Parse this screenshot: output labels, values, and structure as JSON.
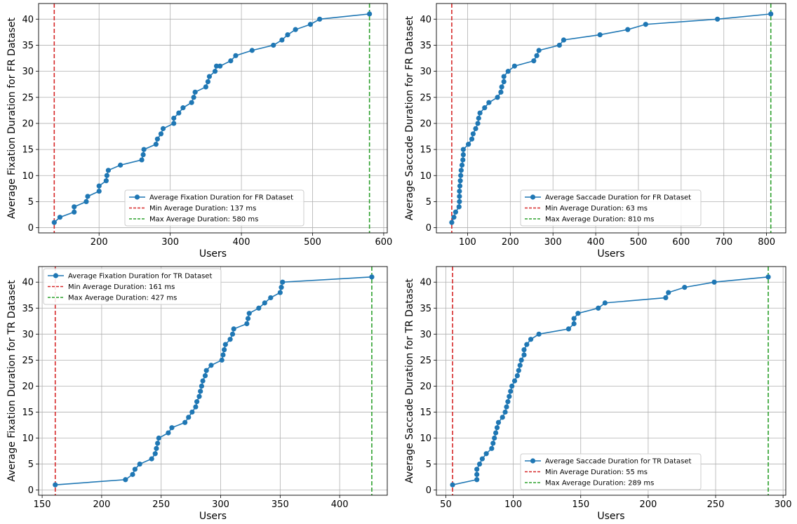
{
  "chart_data": [
    {
      "type": "line",
      "xlabel": "Users",
      "ylabel": "Average Fixation Duration for FR Dataset",
      "xlim": [
        115,
        605
      ],
      "ylim": [
        -1,
        43
      ],
      "xticks": [
        100,
        200,
        300,
        400,
        500,
        600
      ],
      "yticks": [
        0,
        5,
        10,
        15,
        20,
        25,
        30,
        35,
        40
      ],
      "grid": true,
      "legend_position": "lower center",
      "series": [
        {
          "name": "Average Fixation Duration for FR Dataset",
          "x": [
            137,
            145,
            165,
            165,
            182,
            184,
            200,
            200,
            210,
            211,
            213,
            230,
            260,
            262,
            263,
            280,
            282,
            287,
            290,
            305,
            305,
            312,
            318,
            330,
            333,
            335,
            350,
            353,
            355,
            363,
            365,
            370,
            385,
            392,
            415,
            445,
            457,
            465,
            476,
            497,
            510,
            580
          ],
          "y": [
            1,
            2,
            3,
            4,
            5,
            6,
            7,
            8,
            9,
            10,
            11,
            12,
            13,
            14,
            15,
            16,
            17,
            18,
            19,
            20,
            21,
            22,
            23,
            24,
            25,
            26,
            27,
            28,
            29,
            30,
            31,
            31,
            32,
            33,
            34,
            35,
            36,
            37,
            38,
            39,
            40,
            41
          ]
        }
      ],
      "hlines": [
        {
          "name": "Min Average Duration: 137 ms",
          "x": 137,
          "color": "#d62728"
        },
        {
          "name": "Max Average Duration: 580 ms",
          "x": 580,
          "color": "#2ca02c"
        }
      ]
    },
    {
      "type": "line",
      "xlabel": "Users",
      "ylabel": "Average Saccade Duration for FR Dataset",
      "xlim": [
        27,
        845
      ],
      "ylim": [
        -1,
        43
      ],
      "xticks": [
        100,
        200,
        300,
        400,
        500,
        600,
        700,
        800
      ],
      "yticks": [
        0,
        5,
        10,
        15,
        20,
        25,
        30,
        35,
        40
      ],
      "grid": true,
      "legend_position": "lower center",
      "series": [
        {
          "name": "Average Saccade Duration for FR Dataset",
          "x": [
            63,
            68,
            72,
            80,
            81,
            81,
            81,
            82,
            83,
            84,
            85,
            87,
            89,
            90,
            90,
            102,
            110,
            113,
            119,
            124,
            126,
            129,
            140,
            150,
            170,
            178,
            180,
            185,
            185,
            195,
            210,
            255,
            262,
            267,
            315,
            325,
            410,
            475,
            517,
            685,
            810
          ],
          "y": [
            1,
            2,
            3,
            4,
            5,
            6,
            7,
            8,
            9,
            10,
            11,
            12,
            13,
            14,
            15,
            16,
            17,
            18,
            19,
            20,
            21,
            22,
            23,
            24,
            25,
            26,
            27,
            28,
            29,
            30,
            31,
            32,
            33,
            34,
            35,
            36,
            37,
            38,
            39,
            40,
            41
          ]
        }
      ],
      "hlines": [
        {
          "name": "Min Average Duration: 63 ms",
          "x": 63,
          "color": "#d62728"
        },
        {
          "name": "Max Average Duration: 810 ms",
          "x": 810,
          "color": "#2ca02c"
        }
      ]
    },
    {
      "type": "line",
      "xlabel": "Users",
      "ylabel": "Average Fixation Duration for TR Dataset",
      "xlim": [
        147,
        440
      ],
      "ylim": [
        -1,
        43
      ],
      "xticks": [
        150,
        200,
        250,
        300,
        350,
        400
      ],
      "yticks": [
        0,
        5,
        10,
        15,
        20,
        25,
        30,
        35,
        40
      ],
      "grid": true,
      "legend_position": "upper left",
      "series": [
        {
          "name": "Average Fixation Duration for TR Dataset",
          "x": [
            161,
            220,
            226,
            228,
            232,
            242,
            245,
            246,
            247,
            248,
            256,
            259,
            270,
            273,
            276,
            279,
            280,
            282,
            283,
            284,
            285,
            287,
            288,
            292,
            301,
            302,
            303,
            304,
            308,
            310,
            311,
            322,
            323,
            324,
            332,
            337,
            342,
            350,
            351,
            352,
            427
          ],
          "y": [
            1,
            2,
            3,
            4,
            5,
            6,
            7,
            8,
            9,
            10,
            11,
            12,
            13,
            14,
            15,
            16,
            17,
            18,
            19,
            20,
            21,
            22,
            23,
            24,
            25,
            26,
            27,
            28,
            29,
            30,
            31,
            32,
            33,
            34,
            35,
            36,
            37,
            38,
            39,
            40,
            41
          ]
        }
      ],
      "hlines": [
        {
          "name": "Min Average Duration: 161 ms",
          "x": 161,
          "color": "#d62728"
        },
        {
          "name": "Max Average Duration: 427 ms",
          "x": 427,
          "color": "#2ca02c"
        }
      ]
    },
    {
      "type": "line",
      "xlabel": "Users",
      "ylabel": "Average Saccade Duration for TR Dataset",
      "xlim": [
        43,
        302
      ],
      "ylim": [
        -1,
        43
      ],
      "xticks": [
        50,
        100,
        150,
        200,
        250,
        300
      ],
      "yticks": [
        0,
        5,
        10,
        15,
        20,
        25,
        30,
        35,
        40
      ],
      "grid": true,
      "legend_position": "lower center",
      "series": [
        {
          "name": "Average Saccade Duration for TR Dataset",
          "x": [
            55,
            73,
            73,
            73,
            75,
            77,
            80,
            84,
            85,
            86,
            87,
            88,
            89,
            92,
            94,
            95,
            96,
            97,
            98,
            99,
            101,
            103,
            104,
            105,
            106,
            108,
            108,
            110,
            113,
            119,
            141,
            145,
            145,
            148,
            163,
            168,
            213,
            215,
            227,
            249,
            289
          ],
          "y": [
            1,
            2,
            3,
            4,
            5,
            6,
            7,
            8,
            9,
            10,
            11,
            12,
            13,
            14,
            15,
            16,
            17,
            18,
            19,
            20,
            21,
            22,
            23,
            24,
            25,
            26,
            27,
            28,
            29,
            30,
            31,
            32,
            33,
            34,
            35,
            36,
            37,
            38,
            39,
            40,
            41
          ]
        }
      ],
      "hlines": [
        {
          "name": "Min Average Duration: 55 ms",
          "x": 55,
          "color": "#d62728"
        },
        {
          "name": "Max Average Duration: 289 ms",
          "x": 289,
          "color": "#2ca02c"
        }
      ]
    }
  ],
  "colors": {
    "series": "#1f77b4",
    "grid": "#b0b0b0",
    "axis": "#000000"
  }
}
